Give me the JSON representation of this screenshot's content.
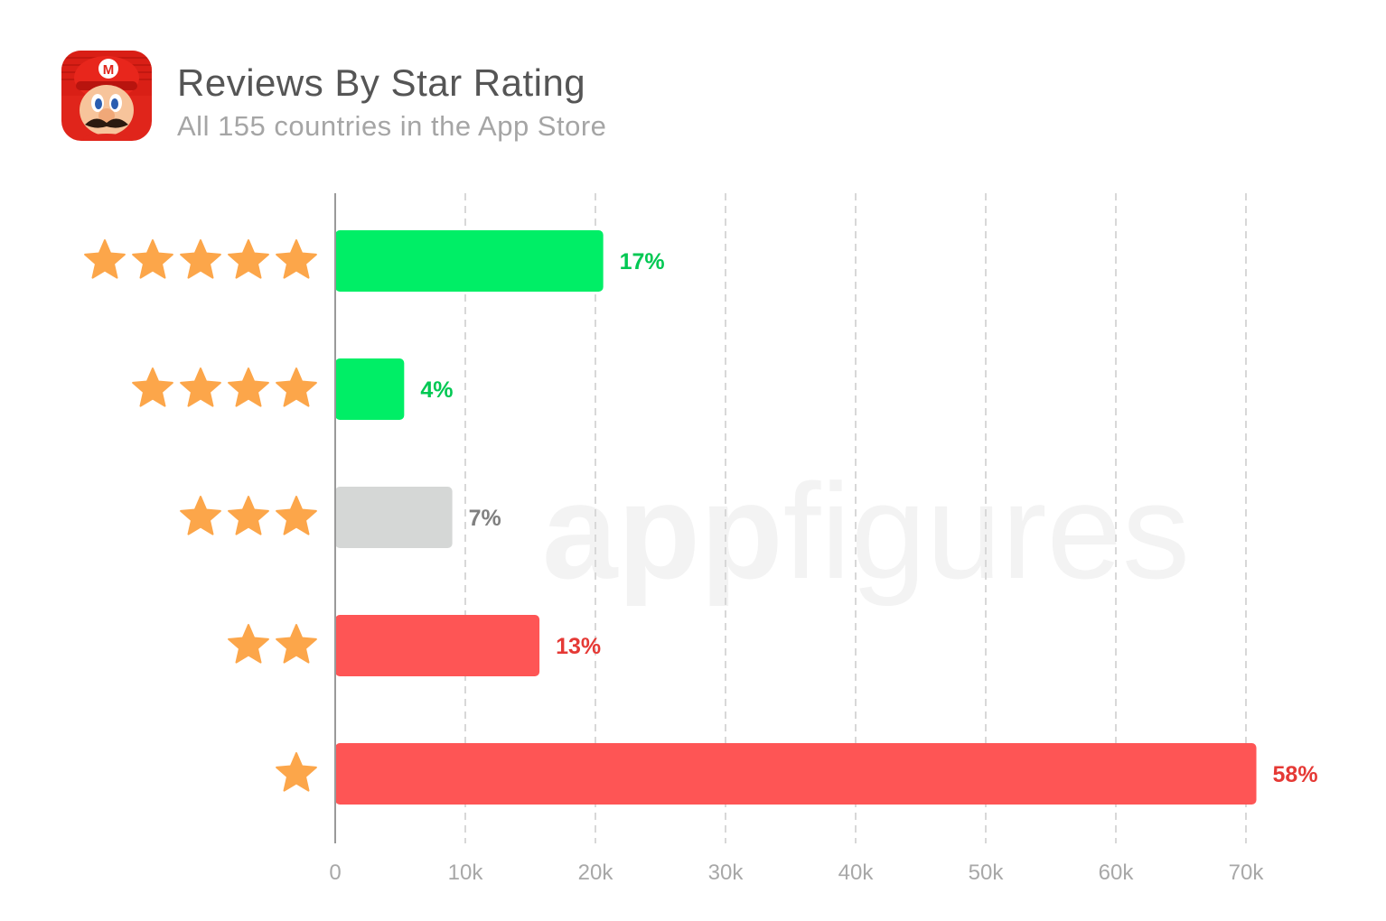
{
  "header": {
    "title": "Reviews By Star Rating",
    "subtitle": "All 155 countries in the App Store",
    "app_icon": "mario-face-icon"
  },
  "watermark": {
    "bold": "app",
    "light": "figures"
  },
  "colors": {
    "positive": "#00ee66",
    "neutral": "#d5d7d6",
    "negative": "#fe5555",
    "positive_label": "#00c853",
    "neutral_label": "#808080",
    "negative_label": "#e53935",
    "star": "#fca64a",
    "axis": "#9a9a9a",
    "grid": "#d8d8d8"
  },
  "chart_data": {
    "type": "bar",
    "orientation": "horizontal",
    "categories": [
      5,
      4,
      3,
      2,
      1
    ],
    "category_icon": "star-icon",
    "values": [
      20600,
      5300,
      9000,
      15700,
      70800
    ],
    "labels": [
      "17%",
      "4%",
      "7%",
      "13%",
      "58%"
    ],
    "sentiment": [
      "positive",
      "positive",
      "neutral",
      "negative",
      "negative"
    ],
    "xlim": [
      0,
      70000
    ],
    "xticks": [
      0,
      10000,
      20000,
      30000,
      40000,
      50000,
      60000,
      70000
    ],
    "xtick_labels": [
      "0",
      "10k",
      "20k",
      "30k",
      "40k",
      "50k",
      "60k",
      "70k"
    ],
    "grid": "vertical-dashed",
    "title": "Reviews By Star Rating",
    "subtitle": "All 155 countries in the App Store"
  }
}
